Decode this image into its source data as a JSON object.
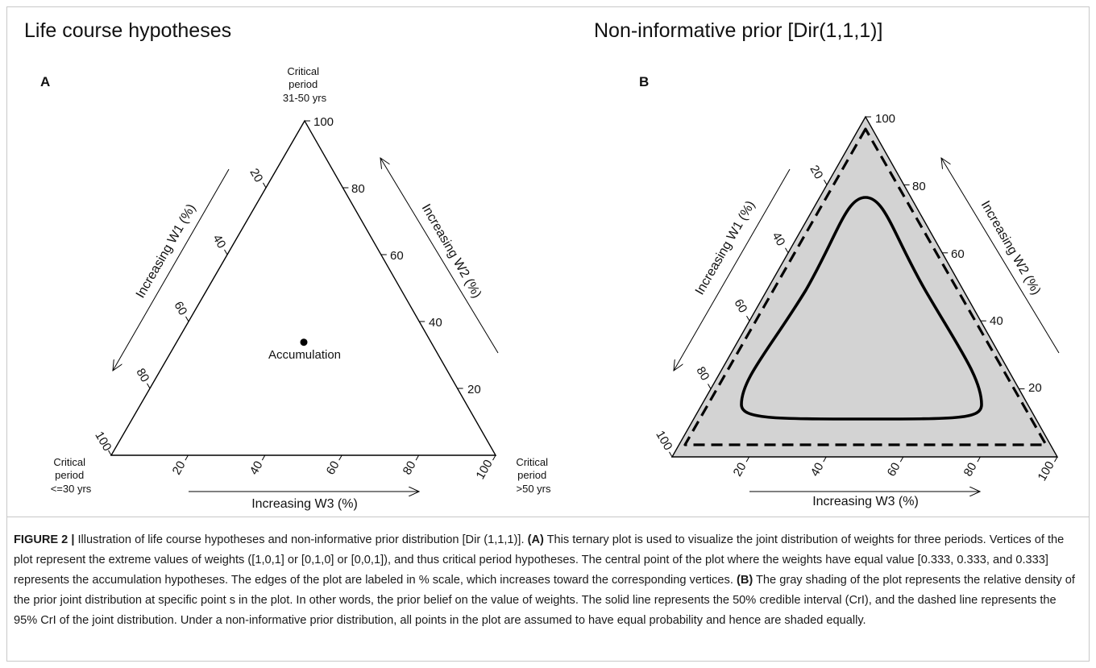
{
  "panel_a": {
    "title": "Life course hypotheses",
    "letter": "A",
    "top_vertex_label": [
      "Critical",
      "period",
      "31-50 yrs"
    ],
    "left_vertex_label": [
      "Critical",
      "period",
      "<=30 yrs"
    ],
    "right_vertex_label": [
      "Critical",
      "period",
      ">50 yrs"
    ],
    "left_edge_ticks": [
      "20",
      "40",
      "60",
      "80",
      "100"
    ],
    "right_edge_ticks": [
      "100",
      "80",
      "60",
      "40",
      "20"
    ],
    "bottom_edge_ticks": [
      "20",
      "40",
      "60",
      "80",
      "100"
    ],
    "left_arrow_label": "Increasing W1 (%)",
    "right_arrow_label": "Increasing W2 (%)",
    "bottom_arrow_label": "Increasing W3 (%)",
    "center_point_label": "Accumulation"
  },
  "panel_b": {
    "title": "Non-informative prior [Dir(1,1,1)]",
    "letter": "B",
    "left_edge_ticks": [
      "20",
      "40",
      "60",
      "80",
      "100"
    ],
    "right_edge_ticks": [
      "100",
      "80",
      "60",
      "40",
      "20"
    ],
    "bottom_edge_ticks": [
      "20",
      "40",
      "60",
      "80",
      "100"
    ],
    "left_arrow_label": "Increasing W1 (%)",
    "right_arrow_label": "Increasing W2 (%)",
    "bottom_arrow_label": "Increasing W3 (%)",
    "colors": {
      "shading": "#d3d3d3",
      "lines": "#000000"
    }
  },
  "chart_data": [
    {
      "type": "scatter",
      "ternary": true,
      "components": [
        "W1",
        "W2",
        "W3"
      ],
      "points": [
        {
          "w1": 0.333,
          "w2": 0.333,
          "w3": 0.333,
          "label": "Accumulation"
        }
      ]
    },
    {
      "type": "area",
      "ternary": true,
      "components": [
        "W1",
        "W2",
        "W3"
      ],
      "density": "uniform",
      "contours": [
        {
          "level": 0.5,
          "style": "solid"
        },
        {
          "level": 0.95,
          "style": "dashed"
        }
      ]
    }
  ],
  "caption": {
    "label": "FIGURE 2 |",
    "intro": " Illustration of life course hypotheses and non-informative prior distribution [Dir (1,1,1)]. ",
    "part_a_label": "(A)",
    "part_a_text": " This ternary plot is used to visualize the joint distribution of weights for three periods. Vertices of the plot represent the extreme values of weights ([1,0,1] or [0,1,0] or [0,0,1]), and thus critical period hypotheses. The central point of the plot where the weights have equal value [0.333, 0.333, and 0.333] represents the accumulation hypotheses. The edges of the plot are labeled in % scale, which increases toward the corresponding vertices. ",
    "part_b_label": "(B)",
    "part_b_text": " The gray shading of the plot represents the relative density of the prior joint distribution at specific point s in the plot. In other words, the prior belief on the value of weights. The solid line represents the 50% credible interval (CrI), and the dashed line represents the 95% CrI of the joint distribution. Under a non-informative prior distribution, all points in the plot are assumed to have equal probability and hence are shaded equally."
  }
}
